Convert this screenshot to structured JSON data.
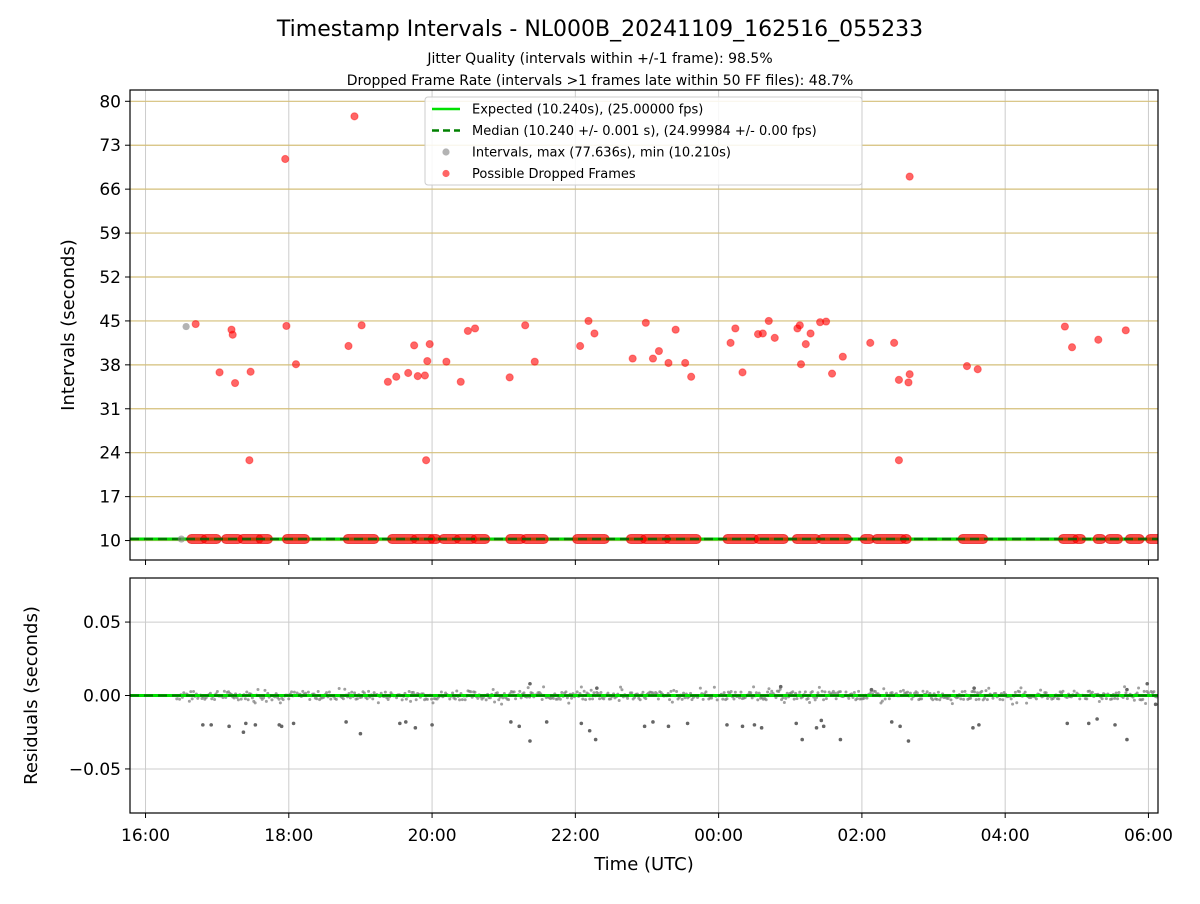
{
  "chart_data": [
    {
      "type": "scatter",
      "title": "Timestamp Intervals - NL000B_20241109_162516_055233",
      "subtitle_lines": [
        "Jitter Quality (intervals within +/-1 frame): 98.5%",
        "Dropped Frame Rate (intervals >1 frames late within 50 FF files): 48.7%"
      ],
      "xlabel": "",
      "ylabel": "Intervals (seconds)",
      "xlim": [
        "15:47",
        "06:08"
      ],
      "ylim": [
        6.9,
        81.8
      ],
      "yticks": [
        "10",
        "17",
        "24",
        "31",
        "38",
        "45",
        "52",
        "59",
        "66",
        "73",
        "80"
      ],
      "ygrid_color": "#d4bf7a",
      "xgrid": true,
      "legend_position": "top-center",
      "legend": [
        {
          "label": "Expected (10.240s), (25.00000 fps)",
          "kind": "line",
          "color": "#00e000",
          "style": "solid"
        },
        {
          "label": "Median (10.240 +/- 0.001 s), (24.99984 +/- 0.00 fps)",
          "kind": "line",
          "color": "#008000",
          "style": "dashed"
        },
        {
          "label": "Intervals, max (77.636s), min (10.210s)",
          "kind": "point",
          "color": "#808080"
        },
        {
          "label": "Possible Dropped Frames",
          "kind": "point",
          "color": "#ff0000"
        }
      ],
      "expected_line": 10.24,
      "median_line": 10.24,
      "intervals_points": [
        [
          "16:30",
          10.24
        ],
        [
          "16:34",
          44.1
        ]
      ],
      "dropped_segments": [
        [
          "16:38",
          "16:48"
        ],
        [
          "16:50",
          "17:00"
        ],
        [
          "17:07",
          "17:18"
        ],
        [
          "17:21",
          "17:35"
        ],
        [
          "17:36",
          "17:43"
        ],
        [
          "17:58",
          "18:14"
        ],
        [
          "18:49",
          "19:12"
        ],
        [
          "19:26",
          "19:44"
        ],
        [
          "19:46",
          "19:59"
        ],
        [
          "20:00",
          "20:04"
        ],
        [
          "20:09",
          "20:20"
        ],
        [
          "20:22",
          "20:34"
        ],
        [
          "20:36",
          "20:45"
        ],
        [
          "21:05",
          "21:15"
        ],
        [
          "21:18",
          "21:34"
        ],
        [
          "22:01",
          "22:25"
        ],
        [
          "22:46",
          "22:56"
        ],
        [
          "22:58",
          "23:16"
        ],
        [
          "23:18",
          "23:42"
        ],
        [
          "24:07",
          "24:30"
        ],
        [
          "24:33",
          "24:55"
        ],
        [
          "25:05",
          "25:22"
        ],
        [
          "25:26",
          "25:48"
        ],
        [
          "26:02",
          "26:07"
        ],
        [
          "26:12",
          "26:34"
        ],
        [
          "26:36",
          "26:38"
        ],
        [
          "27:24",
          "27:42"
        ],
        [
          "28:48",
          "28:58"
        ],
        [
          "29:00",
          "29:04"
        ],
        [
          "29:17",
          "29:21"
        ],
        [
          "29:27",
          "29:35"
        ],
        [
          "29:44",
          "29:53"
        ],
        [
          "30:01",
          "30:08"
        ]
      ],
      "dropped_points": [
        [
          "16:42",
          44.5
        ],
        [
          "17:02",
          36.8
        ],
        [
          "17:12",
          43.6
        ],
        [
          "17:13",
          42.8
        ],
        [
          "17:15",
          35.1
        ],
        [
          "17:27",
          22.8
        ],
        [
          "17:28",
          36.9
        ],
        [
          "17:57",
          70.8
        ],
        [
          "17:58",
          44.2
        ],
        [
          "18:06",
          38.1
        ],
        [
          "18:50",
          41.0
        ],
        [
          "18:55",
          77.6
        ],
        [
          "19:01",
          44.3
        ],
        [
          "19:23",
          35.3
        ],
        [
          "19:30",
          36.1
        ],
        [
          "19:40",
          36.7
        ],
        [
          "19:45",
          41.1
        ],
        [
          "19:48",
          36.2
        ],
        [
          "19:54",
          36.3
        ],
        [
          "19:55",
          22.8
        ],
        [
          "19:56",
          38.6
        ],
        [
          "19:58",
          41.3
        ],
        [
          "20:12",
          38.5
        ],
        [
          "20:24",
          35.3
        ],
        [
          "20:30",
          43.4
        ],
        [
          "20:36",
          43.8
        ],
        [
          "21:05",
          36.0
        ],
        [
          "21:18",
          44.3
        ],
        [
          "21:26",
          38.5
        ],
        [
          "22:04",
          41.0
        ],
        [
          "22:11",
          45.0
        ],
        [
          "22:16",
          43.0
        ],
        [
          "22:48",
          39.0
        ],
        [
          "22:59",
          44.7
        ],
        [
          "23:05",
          39.0
        ],
        [
          "23:10",
          40.2
        ],
        [
          "23:18",
          38.3
        ],
        [
          "23:24",
          43.6
        ],
        [
          "23:32",
          38.3
        ],
        [
          "23:37",
          36.1
        ],
        [
          "24:10",
          41.5
        ],
        [
          "24:14",
          43.8
        ],
        [
          "24:20",
          36.8
        ],
        [
          "24:33",
          42.9
        ],
        [
          "24:37",
          43.0
        ],
        [
          "24:42",
          45.0
        ],
        [
          "24:47",
          42.3
        ],
        [
          "25:06",
          43.8
        ],
        [
          "25:08",
          44.3
        ],
        [
          "25:09",
          38.1
        ],
        [
          "25:13",
          41.3
        ],
        [
          "25:17",
          43.0
        ],
        [
          "25:25",
          44.8
        ],
        [
          "25:30",
          44.9
        ],
        [
          "25:35",
          36.6
        ],
        [
          "25:44",
          39.3
        ],
        [
          "26:07",
          41.5
        ],
        [
          "26:27",
          41.5
        ],
        [
          "26:31",
          22.8
        ],
        [
          "26:31",
          35.6
        ],
        [
          "26:39",
          35.2
        ],
        [
          "26:40",
          36.5
        ],
        [
          "26:40",
          68.0
        ],
        [
          "27:28",
          37.8
        ],
        [
          "27:37",
          37.3
        ],
        [
          "28:50",
          44.1
        ],
        [
          "28:56",
          40.8
        ],
        [
          "29:18",
          42.0
        ],
        [
          "29:41",
          43.5
        ]
      ]
    },
    {
      "type": "scatter",
      "title": "",
      "xlabel": "Time (UTC)",
      "ylabel": "Residuals (seconds)",
      "xlim": [
        "15:47",
        "06:08"
      ],
      "ylim": [
        -0.08,
        0.08
      ],
      "yticks": [
        "−0.05",
        "0.00",
        "0.05"
      ],
      "xticks": [
        "16:00",
        "18:00",
        "20:00",
        "22:00",
        "00:00",
        "02:00",
        "04:00",
        "06:00"
      ],
      "grid": true,
      "expected_line": 0.0,
      "median_line": 0.0,
      "residual_band": {
        "from": "16:25",
        "to": "06:08",
        "spread": 0.003,
        "color": "#808080"
      },
      "residual_outliers": [
        [
          "16:48",
          -0.02
        ],
        [
          "16:55",
          -0.02
        ],
        [
          "17:10",
          -0.021
        ],
        [
          "17:22",
          -0.025
        ],
        [
          "17:24",
          -0.019
        ],
        [
          "17:32",
          -0.02
        ],
        [
          "17:52",
          -0.02
        ],
        [
          "17:54",
          -0.021
        ],
        [
          "18:04",
          -0.019
        ],
        [
          "18:48",
          -0.018
        ],
        [
          "19:00",
          -0.026
        ],
        [
          "19:33",
          -0.019
        ],
        [
          "19:38",
          -0.018
        ],
        [
          "19:46",
          -0.022
        ],
        [
          "20:00",
          -0.02
        ],
        [
          "21:06",
          -0.018
        ],
        [
          "21:13",
          -0.021
        ],
        [
          "21:22",
          -0.031
        ],
        [
          "21:36",
          -0.018
        ],
        [
          "22:05",
          -0.019
        ],
        [
          "22:12",
          -0.024
        ],
        [
          "22:17",
          -0.03
        ],
        [
          "22:58",
          -0.021
        ],
        [
          "23:05",
          -0.018
        ],
        [
          "23:18",
          -0.021
        ],
        [
          "23:34",
          -0.019
        ],
        [
          "24:07",
          -0.02
        ],
        [
          "24:20",
          -0.021
        ],
        [
          "24:30",
          -0.02
        ],
        [
          "24:36",
          -0.022
        ],
        [
          "25:05",
          -0.019
        ],
        [
          "25:10",
          -0.03
        ],
        [
          "25:22",
          -0.022
        ],
        [
          "25:26",
          -0.017
        ],
        [
          "25:28",
          -0.021
        ],
        [
          "25:42",
          -0.03
        ],
        [
          "26:25",
          -0.018
        ],
        [
          "26:32",
          -0.021
        ],
        [
          "26:39",
          -0.031
        ],
        [
          "27:33",
          -0.022
        ],
        [
          "27:38",
          -0.02
        ],
        [
          "28:52",
          -0.019
        ],
        [
          "29:10",
          -0.019
        ],
        [
          "29:17",
          -0.016
        ],
        [
          "29:32",
          -0.02
        ],
        [
          "29:42",
          -0.03
        ],
        [
          "30:06",
          -0.006
        ],
        [
          "21:22",
          0.008
        ],
        [
          "24:52",
          0.006
        ],
        [
          "26:08",
          0.004
        ],
        [
          "27:34",
          0.005
        ],
        [
          "29:59",
          0.008
        ],
        [
          "29:42",
          0.004
        ],
        [
          "22:18",
          0.005
        ]
      ]
    }
  ]
}
